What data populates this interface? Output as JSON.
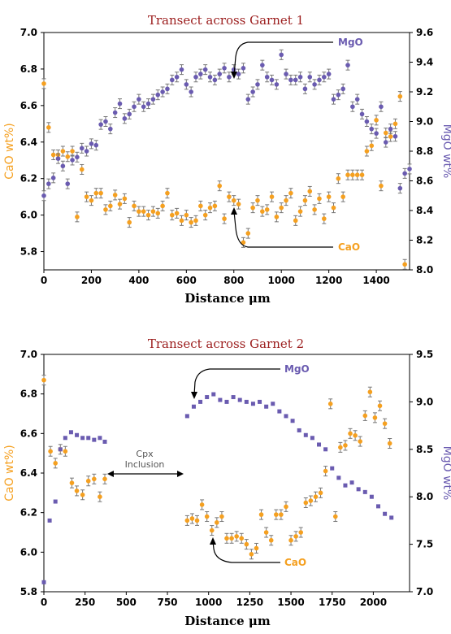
{
  "colors": {
    "cao": "#f5a020",
    "mgo": "#6a5bb0",
    "title": "#9b1c1c",
    "errbar": "#777777"
  },
  "chart_data": [
    {
      "type": "scatter",
      "title": "Transect across Garnet 1",
      "xlabel": "Distance μm",
      "ylabel_left": "CaO wt%)",
      "ylabel_right": "MgO wt%",
      "xlim": [
        0,
        1540
      ],
      "ylim_left": [
        5.7,
        7.0
      ],
      "ylim_right": [
        8.0,
        9.6
      ],
      "xticks": [
        0,
        200,
        400,
        600,
        800,
        1000,
        1200,
        1400
      ],
      "yticks_left": [
        5.8,
        6.0,
        6.2,
        6.4,
        6.6,
        6.8,
        7.0
      ],
      "yticks_right": [
        8.0,
        8.2,
        8.4,
        8.6,
        8.8,
        9.0,
        9.2,
        9.4,
        9.6
      ],
      "annotations": [
        "MgO",
        "CaO"
      ],
      "series": [
        {
          "name": "CaO",
          "axis": "left",
          "marker": "circle",
          "errorbars": true,
          "x": [
            0,
            20,
            40,
            60,
            80,
            100,
            120,
            140,
            160,
            180,
            200,
            220,
            240,
            260,
            280,
            300,
            320,
            340,
            360,
            380,
            400,
            420,
            440,
            460,
            480,
            500,
            520,
            540,
            560,
            580,
            600,
            620,
            640,
            660,
            680,
            700,
            720,
            740,
            760,
            780,
            800,
            820,
            840,
            860,
            880,
            900,
            920,
            940,
            960,
            980,
            1000,
            1020,
            1040,
            1060,
            1080,
            1100,
            1120,
            1140,
            1160,
            1180,
            1200,
            1220,
            1240,
            1260,
            1280,
            1300,
            1320,
            1340,
            1360,
            1380,
            1400,
            1420,
            1440,
            1460,
            1480,
            1500,
            1520
          ],
          "y": [
            6.72,
            6.48,
            6.33,
            6.33,
            6.35,
            6.32,
            6.35,
            5.99,
            6.25,
            6.1,
            6.08,
            6.12,
            6.12,
            6.03,
            6.05,
            6.11,
            6.06,
            6.09,
            5.96,
            6.05,
            6.02,
            6.02,
            6.0,
            6.02,
            6.01,
            6.05,
            6.12,
            6.0,
            6.01,
            5.97,
            6.0,
            5.96,
            5.97,
            6.05,
            6.0,
            6.04,
            6.05,
            6.16,
            5.98,
            6.1,
            6.08,
            6.06,
            5.85,
            5.9,
            6.04,
            6.08,
            6.02,
            6.03,
            6.1,
            5.99,
            6.04,
            6.08,
            6.12,
            5.97,
            6.02,
            6.08,
            6.13,
            6.03,
            6.09,
            5.98,
            6.1,
            6.04,
            6.2,
            6.1,
            6.22,
            6.22,
            6.22,
            6.22,
            6.35,
            6.38,
            6.52,
            6.16,
            6.45,
            6.43,
            6.5,
            6.65,
            5.73
          ]
        },
        {
          "name": "MgO",
          "axis": "right",
          "marker": "circle",
          "errorbars": true,
          "x": [
            0,
            20,
            40,
            60,
            80,
            100,
            120,
            140,
            160,
            180,
            200,
            220,
            240,
            260,
            280,
            300,
            320,
            340,
            360,
            380,
            400,
            420,
            440,
            460,
            480,
            500,
            520,
            540,
            560,
            580,
            600,
            620,
            640,
            660,
            680,
            700,
            720,
            740,
            760,
            780,
            800,
            820,
            840,
            860,
            880,
            900,
            920,
            940,
            960,
            980,
            1000,
            1020,
            1040,
            1060,
            1080,
            1100,
            1120,
            1140,
            1160,
            1180,
            1200,
            1220,
            1240,
            1260,
            1280,
            1300,
            1320,
            1340,
            1360,
            1380,
            1400,
            1420,
            1440,
            1460,
            1480,
            1500,
            1520,
            1540
          ],
          "y": [
            8.5,
            8.58,
            8.62,
            8.75,
            8.7,
            8.58,
            8.74,
            8.76,
            8.82,
            8.8,
            8.85,
            8.84,
            8.98,
            9.0,
            8.95,
            9.06,
            9.12,
            9.02,
            9.05,
            9.1,
            9.15,
            9.1,
            9.12,
            9.15,
            9.18,
            9.2,
            9.22,
            9.28,
            9.3,
            9.35,
            9.25,
            9.2,
            9.3,
            9.32,
            9.35,
            9.3,
            9.28,
            9.32,
            9.36,
            9.3,
            9.35,
            9.32,
            9.36,
            9.15,
            9.2,
            9.25,
            9.38,
            9.3,
            9.28,
            9.25,
            9.45,
            9.32,
            9.28,
            9.28,
            9.3,
            9.22,
            9.3,
            9.25,
            9.28,
            9.3,
            9.32,
            9.15,
            9.18,
            9.22,
            9.38,
            9.1,
            9.15,
            9.05,
            9.0,
            8.95,
            8.92,
            9.1,
            8.86,
            8.95,
            8.9,
            8.55,
            8.65,
            8.68
          ]
        }
      ]
    },
    {
      "type": "scatter",
      "title": "Transect across Garnet 2",
      "xlabel": "Distance μm",
      "ylabel_left": "CaO wt%)",
      "ylabel_right": "MgO wt%",
      "xlim": [
        0,
        2220
      ],
      "ylim_left": [
        5.8,
        7.0
      ],
      "ylim_right": [
        7.0,
        9.5
      ],
      "xticks": [
        0,
        250,
        500,
        750,
        1000,
        1250,
        1500,
        1750,
        2000
      ],
      "yticks_left": [
        5.8,
        6.0,
        6.2,
        6.4,
        6.6,
        6.8,
        7.0
      ],
      "yticks_right": [
        7.0,
        7.5,
        8.0,
        8.5,
        9.0,
        9.5
      ],
      "annotations": [
        "MgO",
        "CaO",
        "Cpx",
        "Inclusion"
      ],
      "series": [
        {
          "name": "CaO",
          "axis": "left",
          "marker": "circle",
          "errorbars": true,
          "x": [
            0,
            40,
            70,
            100,
            130,
            170,
            200,
            235,
            270,
            305,
            340,
            370,
            870,
            900,
            930,
            960,
            990,
            1020,
            1050,
            1080,
            1110,
            1140,
            1170,
            1200,
            1230,
            1260,
            1290,
            1320,
            1350,
            1380,
            1410,
            1440,
            1470,
            1500,
            1530,
            1560,
            1590,
            1620,
            1650,
            1680,
            1710,
            1740,
            1770,
            1800,
            1830,
            1860,
            1890,
            1920,
            1950,
            1980,
            2010,
            2040,
            2070,
            2100
          ],
          "y": [
            6.87,
            6.51,
            6.45,
            6.52,
            6.51,
            6.35,
            6.31,
            6.29,
            6.36,
            6.37,
            6.28,
            6.37,
            6.16,
            6.17,
            6.16,
            6.24,
            6.18,
            6.11,
            6.15,
            6.18,
            6.07,
            6.07,
            6.08,
            6.07,
            6.04,
            5.99,
            6.02,
            6.19,
            6.1,
            6.06,
            6.19,
            6.19,
            6.23,
            6.06,
            6.08,
            6.1,
            6.25,
            6.26,
            6.28,
            6.3,
            6.41,
            6.75,
            6.18,
            6.53,
            6.54,
            6.6,
            6.59,
            6.56,
            6.69,
            6.81,
            6.68,
            6.74,
            6.65,
            6.55
          ]
        },
        {
          "name": "MgO",
          "axis": "right",
          "marker": "square",
          "errorbars": false,
          "x": [
            0,
            35,
            70,
            100,
            130,
            165,
            200,
            235,
            270,
            305,
            340,
            370,
            870,
            910,
            950,
            990,
            1030,
            1070,
            1110,
            1150,
            1190,
            1230,
            1270,
            1310,
            1350,
            1390,
            1430,
            1470,
            1510,
            1550,
            1590,
            1630,
            1670,
            1710,
            1750,
            1790,
            1830,
            1870,
            1910,
            1950,
            1990,
            2030,
            2070,
            2110
          ],
          "y": [
            7.1,
            7.75,
            7.95,
            8.5,
            8.62,
            8.68,
            8.65,
            8.62,
            8.62,
            8.6,
            8.62,
            8.58,
            8.85,
            8.95,
            9.0,
            9.05,
            9.08,
            9.02,
            9.0,
            9.05,
            9.02,
            9.0,
            8.98,
            9.0,
            8.95,
            8.98,
            8.9,
            8.85,
            8.8,
            8.7,
            8.65,
            8.62,
            8.55,
            8.5,
            8.3,
            8.2,
            8.12,
            8.15,
            8.08,
            8.05,
            8.0,
            7.9,
            7.82,
            7.78
          ]
        }
      ]
    }
  ]
}
